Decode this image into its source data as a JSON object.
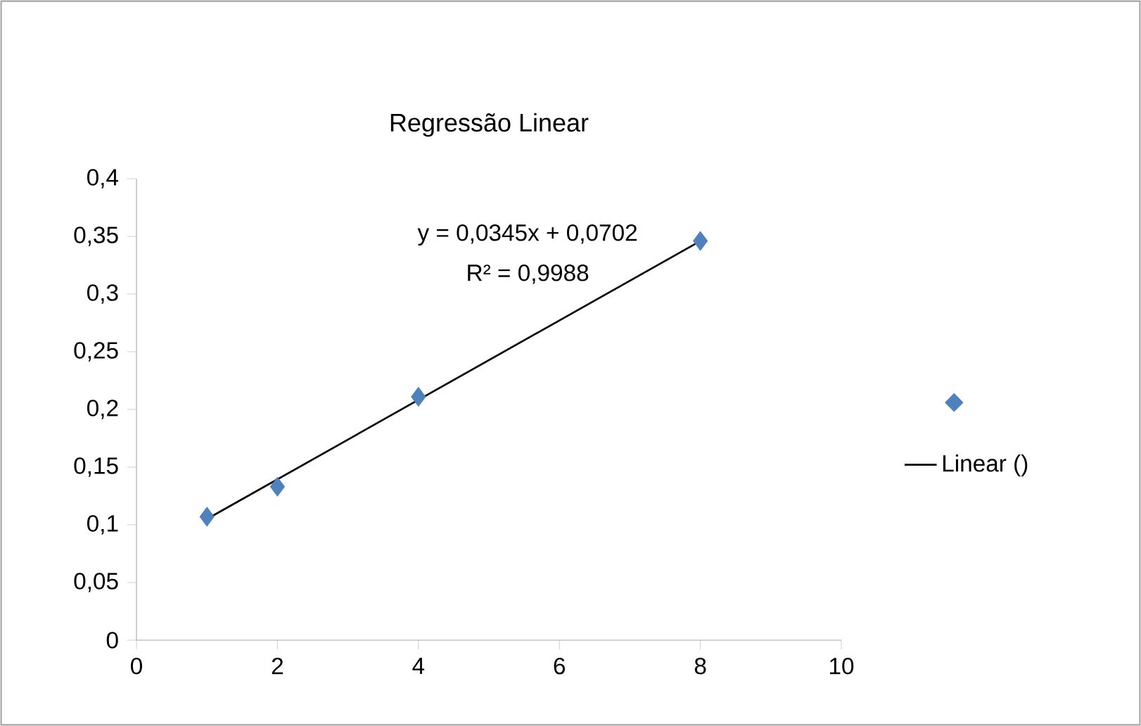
{
  "chart_data": {
    "type": "scatter",
    "title": "Regressão Linear",
    "x": [
      1,
      2,
      4,
      8
    ],
    "series": [
      {
        "color": "#4f81bd",
        "values": [
          0.107,
          0.133,
          0.211,
          0.346
        ],
        "marker": "diamond"
      },
      {
        "type": "line",
        "name": "Linear ()",
        "color": "#000000",
        "x": [
          1,
          8
        ],
        "values": [
          0.105,
          0.346
        ],
        "marker": "none",
        "line_style": "solid"
      }
    ],
    "annotations": [
      "y = 0,0345x + 0,0702",
      "R² = 0,9988"
    ],
    "xlim": [
      0,
      10
    ],
    "xticks": [
      0,
      2,
      4,
      6,
      8,
      10
    ],
    "ylim": [
      0,
      0.4
    ],
    "yticks": [
      0,
      {
        "value": 0.05,
        "label": "0,05"
      },
      {
        "value": 0.1,
        "label": "0,1"
      },
      {
        "value": 0.15,
        "label": "0,15"
      },
      {
        "value": 0.2,
        "label": "0,2"
      },
      {
        "value": 0.25,
        "label": "0,25"
      },
      {
        "value": 0.3,
        "label": "0,3"
      },
      {
        "value": 0.35,
        "label": "0,35"
      },
      {
        "value": 0.4,
        "label": "0,4"
      }
    ],
    "grid": false,
    "legend": "right"
  }
}
